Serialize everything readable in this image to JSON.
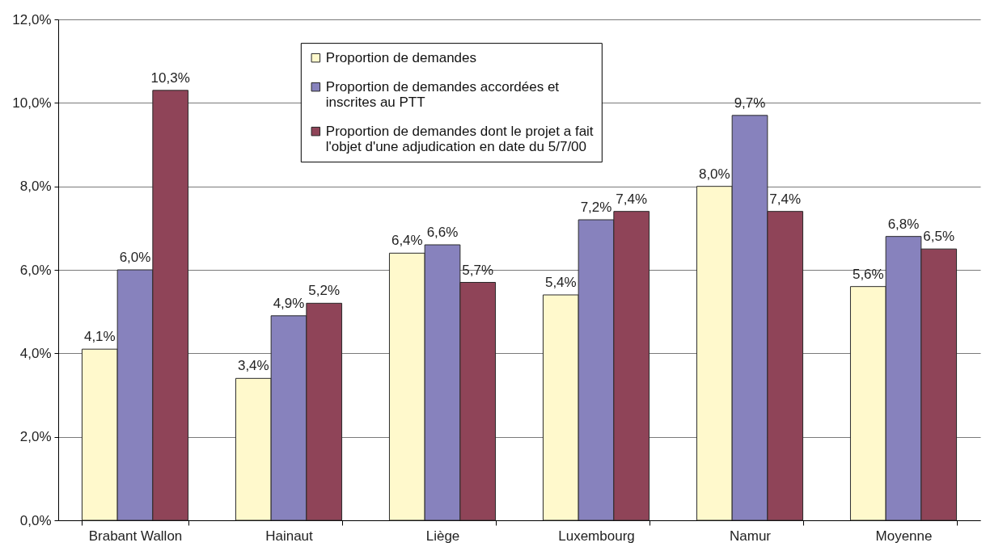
{
  "chart_data": {
    "type": "bar",
    "categories": [
      "Brabant Wallon",
      "Hainaut",
      "Liège",
      "Luxembourg",
      "Namur",
      "Moyenne"
    ],
    "series": [
      {
        "name": "Proportion de demandes",
        "color": "#fff9cc",
        "values": [
          4.1,
          3.4,
          6.4,
          5.4,
          8.0,
          5.6
        ],
        "value_labels": [
          "4,1%",
          "3,4%",
          "6,4%",
          "5,4%",
          "8,0%",
          "5,6%"
        ]
      },
      {
        "name": "Proportion de demandes accordées et inscrites au PTT",
        "color": "#8782bd",
        "values": [
          6.0,
          4.9,
          6.6,
          7.2,
          9.7,
          6.8
        ],
        "value_labels": [
          "6,0%",
          "4,9%",
          "6,6%",
          "7,2%",
          "9,7%",
          "6,8%"
        ]
      },
      {
        "name": "Proportion de demandes dont le projet a fait l'objet d'une adjudication en date du 5/7/00",
        "color": "#8f4458",
        "values": [
          10.3,
          5.2,
          5.7,
          7.4,
          7.4,
          6.5
        ],
        "value_labels": [
          "10,3%",
          "5,2%",
          "5,7%",
          "7,4%",
          "7,4%",
          "6,5%"
        ]
      }
    ],
    "ylim": [
      0,
      12
    ],
    "yticks": [
      {
        "value": 0,
        "label": "0,0%"
      },
      {
        "value": 2,
        "label": "2,0%"
      },
      {
        "value": 4,
        "label": "4,0%"
      },
      {
        "value": 6,
        "label": "6,0%"
      },
      {
        "value": 8,
        "label": "8,0%"
      },
      {
        "value": 10,
        "label": "10,0%"
      },
      {
        "value": 12,
        "label": "12,0%"
      }
    ],
    "grid": "y",
    "legend": "top"
  }
}
